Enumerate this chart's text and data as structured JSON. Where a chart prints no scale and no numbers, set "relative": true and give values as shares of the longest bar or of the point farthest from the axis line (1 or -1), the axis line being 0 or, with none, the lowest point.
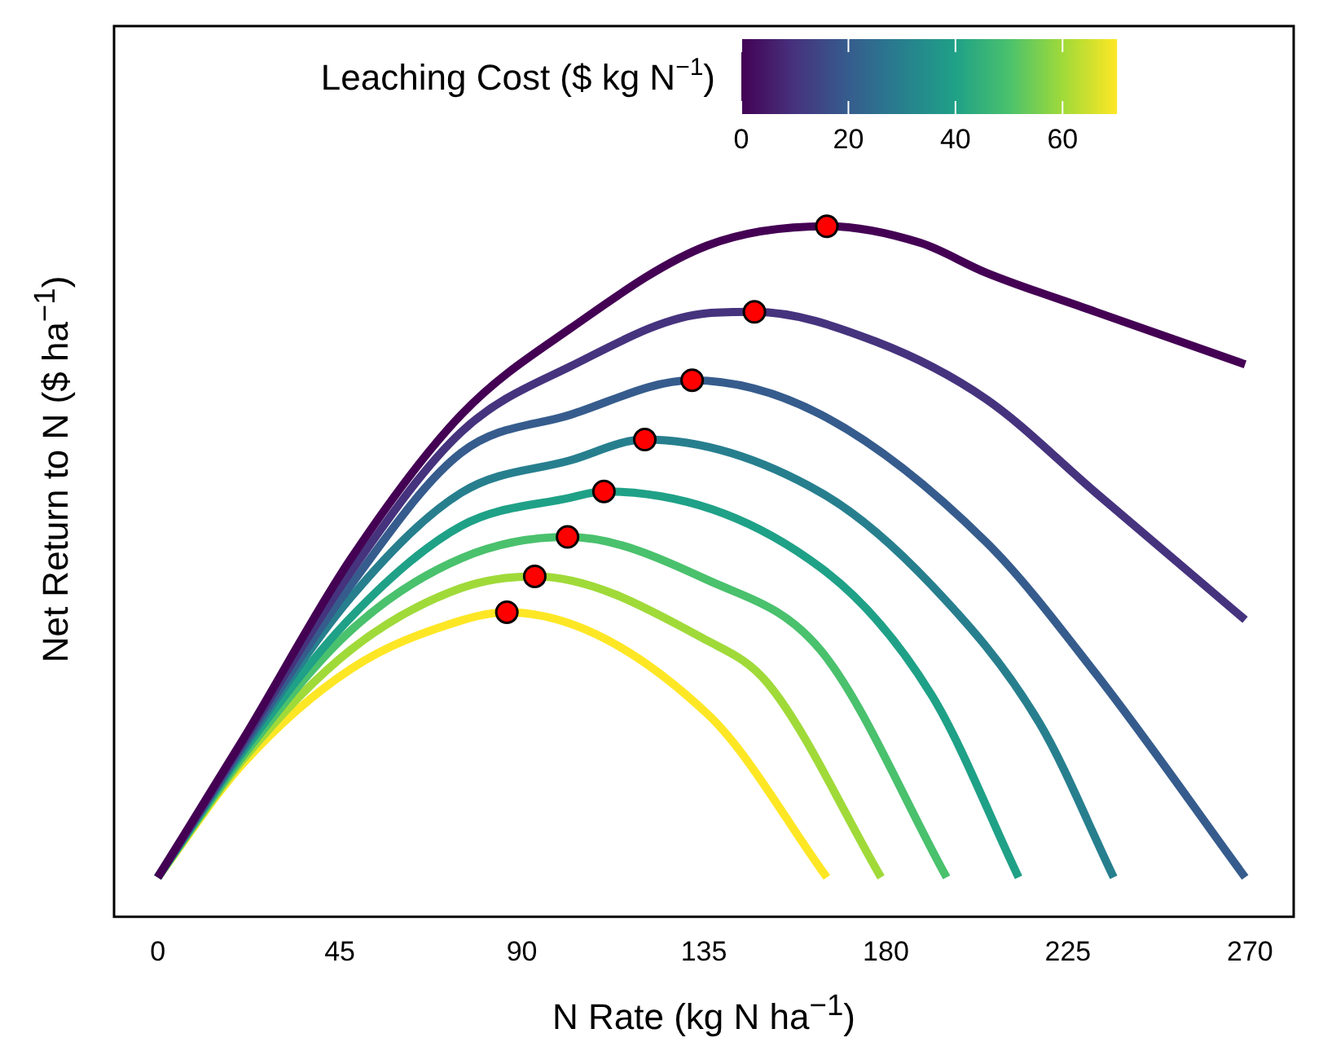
{
  "chart_data": {
    "type": "line",
    "relative": true,
    "xlabel": "N Rate (kg N ha$^{−1}$)",
    "ylabel": "Net Return to N ($ ha$^{−1}$)",
    "clabel": "Leaching Cost ($ kg N$^{−1}$)",
    "clim": [
      0,
      70
    ],
    "cticks": [
      0,
      20,
      40,
      60
    ],
    "xlim": [
      -10.8,
      280.8
    ],
    "xticks": [
      0,
      45,
      90,
      135,
      180,
      225,
      270
    ],
    "legend": false,
    "series": [
      {
        "color": "#440154",
        "x": [
          0,
          21.1,
          47.8,
          75,
          102,
          135.8,
          165.4,
          188.5,
          204.7,
          231.9,
          268.8
        ],
        "values": [
          0.057,
          0.257,
          0.519,
          0.727,
          0.852,
          0.972,
          1,
          0.976,
          0.933,
          0.876,
          0.8
        ]
      },
      {
        "color": "#46337e",
        "x": [
          0,
          21.1,
          47.8,
          75,
          102,
          135.8,
          147.5,
          177.5,
          204.7,
          231.9,
          268.8
        ],
        "values": [
          0.057,
          0.253,
          0.5,
          0.702,
          0.797,
          0.874,
          0.876,
          0.833,
          0.75,
          0.614,
          0.43
        ]
      },
      {
        "color": "#365c8d",
        "x": [
          0,
          21.1,
          47.8,
          75,
          102,
          132.1,
          164,
          204.7,
          231.9,
          268.8
        ],
        "values": [
          0.057,
          0.248,
          0.481,
          0.672,
          0.727,
          0.777,
          0.727,
          0.543,
          0.352,
          0.057
        ]
      },
      {
        "color": "#277f8e",
        "x": [
          0,
          21.1,
          47.8,
          75,
          102,
          120.4,
          164,
          191.3,
          218,
          236.3
        ],
        "values": [
          0.057,
          0.244,
          0.463,
          0.614,
          0.661,
          0.691,
          0.614,
          0.48,
          0.28,
          0.057
        ]
      },
      {
        "color": "#1fa187",
        "x": [
          0,
          21.1,
          47.8,
          75,
          102,
          110.3,
          164,
          191.3,
          212.8
        ],
        "values": [
          0.057,
          0.239,
          0.434,
          0.566,
          0.607,
          0.616,
          0.505,
          0.321,
          0.057
        ]
      },
      {
        "color": "#4ac16d",
        "x": [
          0,
          21.1,
          47.8,
          75,
          101.3,
          135.8,
          164,
          195
        ],
        "values": [
          0.057,
          0.233,
          0.415,
          0.519,
          0.55,
          0.488,
          0.385,
          0.057
        ]
      },
      {
        "color": "#a0da39",
        "x": [
          0,
          21.1,
          47.8,
          75,
          93.2,
          135.8,
          150.8,
          178.8
        ],
        "values": [
          0.057,
          0.228,
          0.387,
          0.476,
          0.493,
          0.4,
          0.338,
          0.057
        ]
      },
      {
        "color": "#fde725",
        "x": [
          0,
          21.1,
          47.8,
          75,
          86.3,
          136,
          165.4
        ],
        "values": [
          0.057,
          0.222,
          0.359,
          0.429,
          0.441,
          0.293,
          0.057
        ]
      },
      {
        "type": "scatter",
        "marker": "circle",
        "color": "#ff0000",
        "x": [
          165.4,
          147.5,
          132.1,
          120.4,
          110.3,
          101.3,
          93.2,
          86.3
        ],
        "values": [
          1,
          0.876,
          0.777,
          0.691,
          0.616,
          0.55,
          0.493,
          0.441
        ]
      }
    ]
  }
}
